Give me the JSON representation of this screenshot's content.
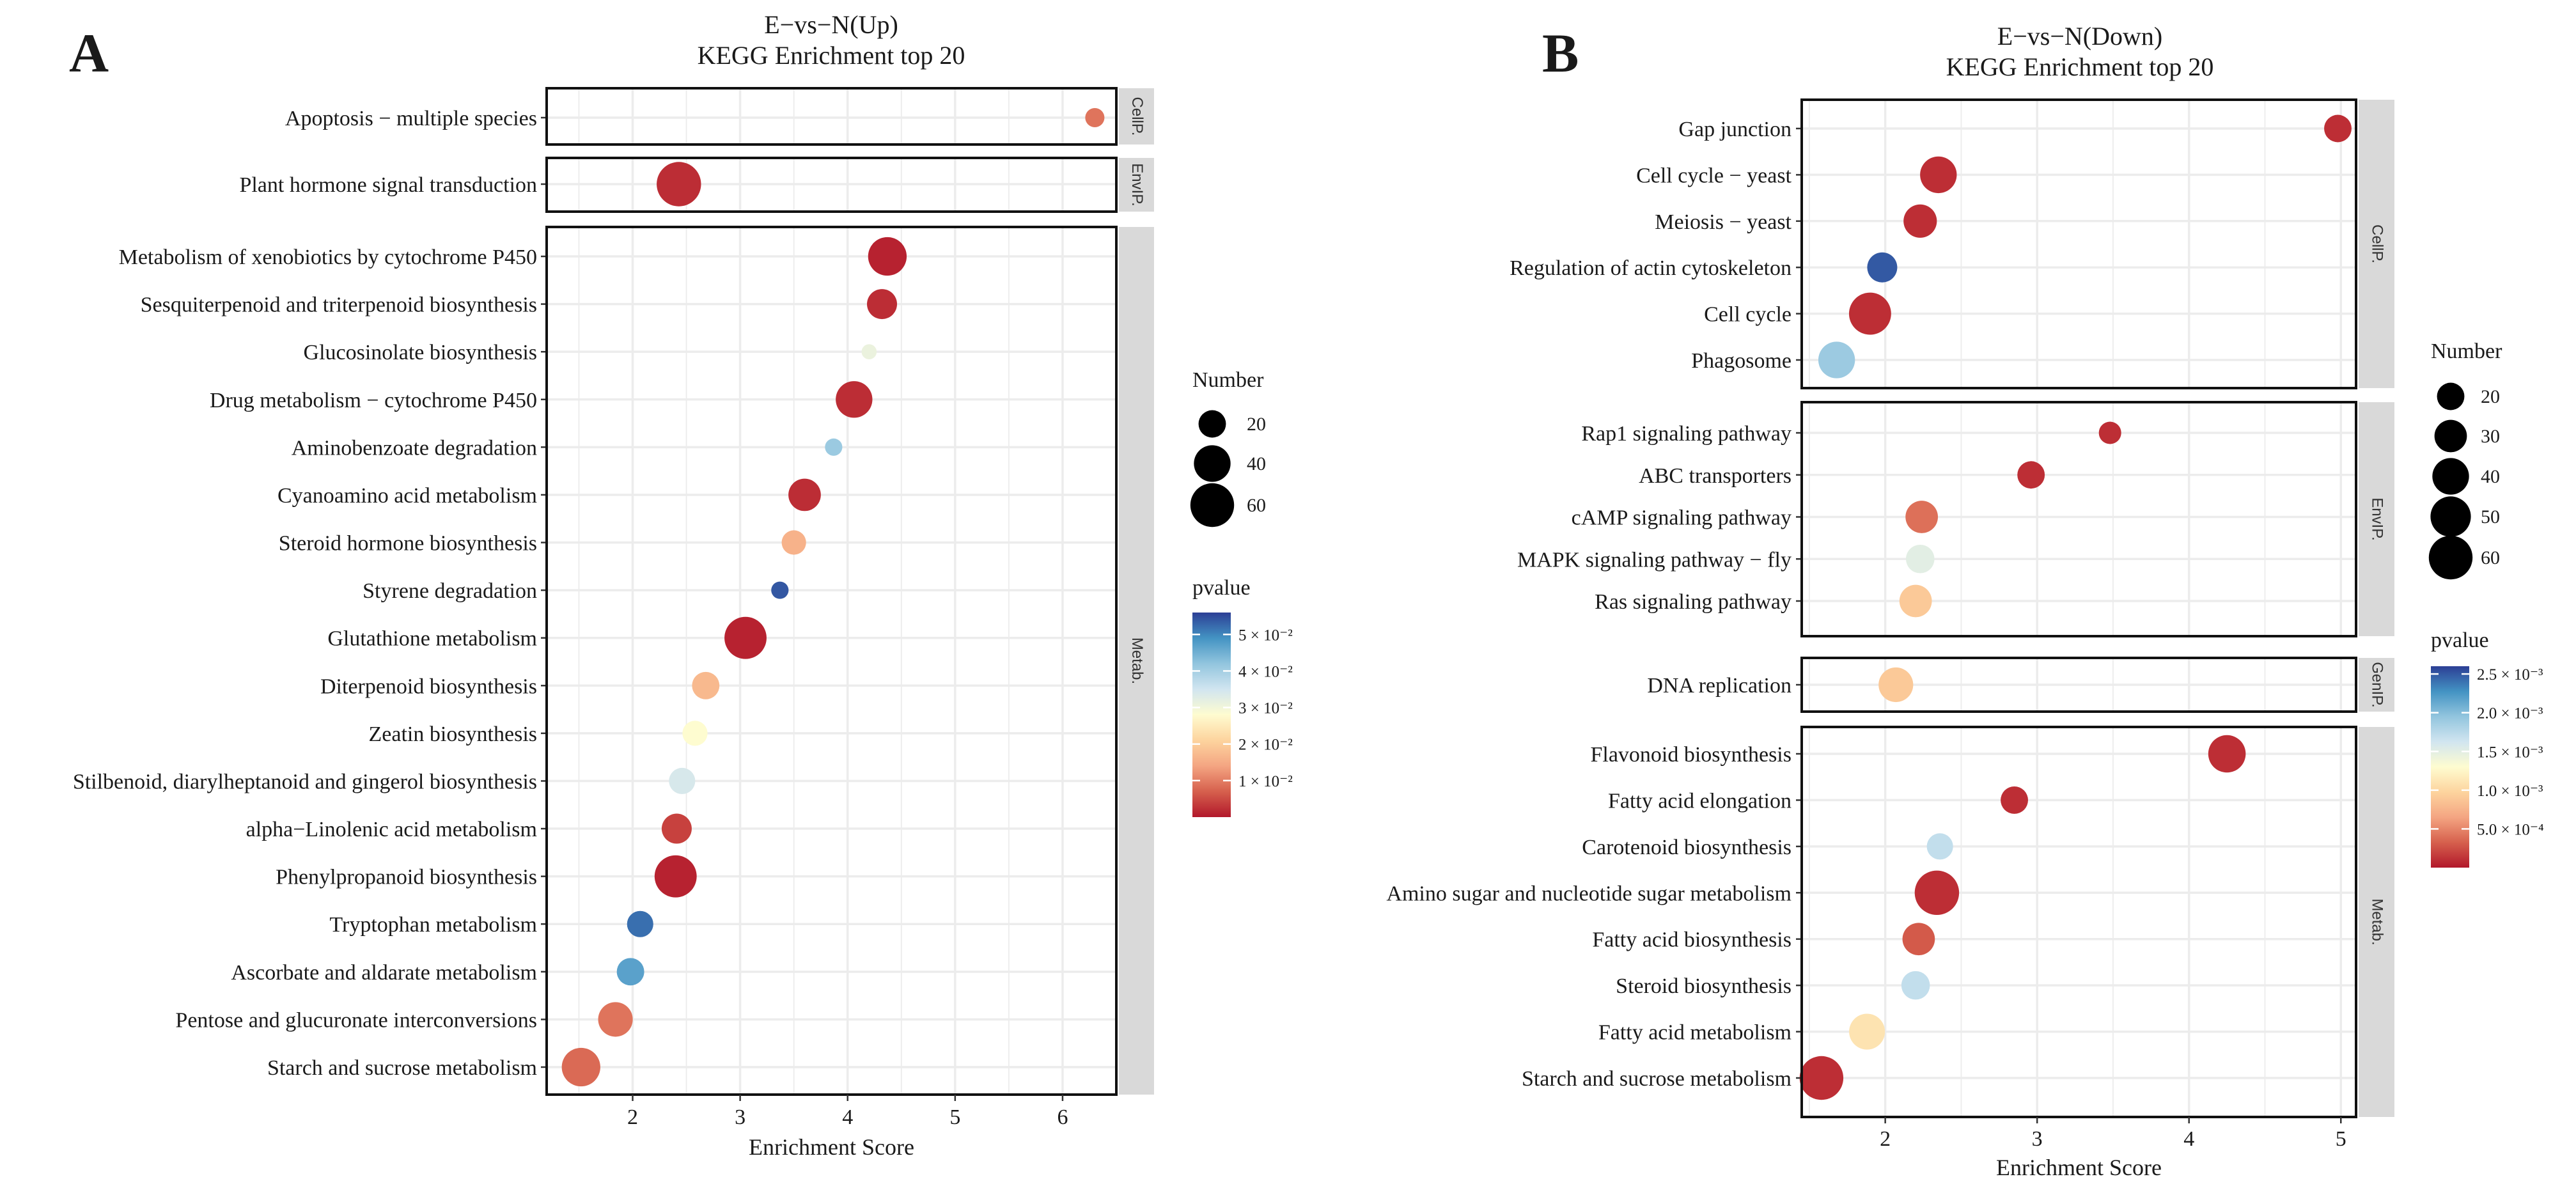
{
  "chart_data": [
    {
      "panel": "A",
      "type": "scatter",
      "title": "E−vs−N(Up)",
      "subtitle": "KEGG Enrichment top 20",
      "xlabel": "Enrichment Score",
      "xlim": [
        1.2,
        6.5
      ],
      "xticks": [
        2,
        3,
        4,
        5,
        6
      ],
      "size_legend": {
        "title": "Number",
        "values": [
          20,
          40,
          60
        ]
      },
      "color_legend": {
        "title": "pvalue",
        "min": 0.0,
        "max": 0.056,
        "ticks": [
          {
            "value": 0.05,
            "label": "5 × 10⁻²"
          },
          {
            "value": 0.04,
            "label": "4 × 10⁻²"
          },
          {
            "value": 0.03,
            "label": "3 × 10⁻²"
          },
          {
            "value": 0.02,
            "label": "2 × 10⁻²"
          },
          {
            "value": 0.01,
            "label": "1 × 10⁻²"
          }
        ]
      },
      "facets": [
        {
          "label": "CellP.",
          "rows": [
            {
              "term": "Apoptosis − multiple species",
              "x": 6.3,
              "number": 8,
              "pvalue": 0.009
            }
          ]
        },
        {
          "label": "EnvIP.",
          "rows": [
            {
              "term": "Plant hormone signal transduction",
              "x": 2.43,
              "number": 62,
              "pvalue": 0.002
            }
          ]
        },
        {
          "label": "Metab.",
          "rows": [
            {
              "term": "Metabolism of xenobiotics by cytochrome P450",
              "x": 4.37,
              "number": 45,
              "pvalue": 0.001
            },
            {
              "term": "Sesquiterpenoid and triterpenoid biosynthesis",
              "x": 4.32,
              "number": 25,
              "pvalue": 0.002
            },
            {
              "term": "Glucosinolate biosynthesis",
              "x": 4.2,
              "number": 4,
              "pvalue": 0.031
            },
            {
              "term": "Drug metabolism − cytochrome P450",
              "x": 4.06,
              "number": 40,
              "pvalue": 0.002
            },
            {
              "term": "Aminobenzoate degradation",
              "x": 3.87,
              "number": 6,
              "pvalue": 0.041
            },
            {
              "term": "Cyanoamino acid metabolism",
              "x": 3.6,
              "number": 30,
              "pvalue": 0.002
            },
            {
              "term": "Steroid hormone biosynthesis",
              "x": 3.5,
              "number": 15,
              "pvalue": 0.016
            },
            {
              "term": "Styrene degradation",
              "x": 3.37,
              "number": 6,
              "pvalue": 0.054
            },
            {
              "term": "Glutathione metabolism",
              "x": 3.05,
              "number": 55,
              "pvalue": 0.001
            },
            {
              "term": "Diterpenoid biosynthesis",
              "x": 2.68,
              "number": 20,
              "pvalue": 0.017
            },
            {
              "term": "Zeatin biosynthesis",
              "x": 2.58,
              "number": 16,
              "pvalue": 0.028
            },
            {
              "term": "Stilbenoid, diarylheptanoid and gingerol biosynthesis",
              "x": 2.46,
              "number": 18,
              "pvalue": 0.034
            },
            {
              "term": "alpha−Linolenic acid metabolism",
              "x": 2.41,
              "number": 25,
              "pvalue": 0.004
            },
            {
              "term": "Phenylpropanoid biosynthesis",
              "x": 2.4,
              "number": 55,
              "pvalue": 0.001
            },
            {
              "term": "Tryptophan metabolism",
              "x": 2.07,
              "number": 18,
              "pvalue": 0.052
            },
            {
              "term": "Ascorbate and aldarate metabolism",
              "x": 1.98,
              "number": 20,
              "pvalue": 0.047
            },
            {
              "term": "Pentose and glucuronate interconversions",
              "x": 1.84,
              "number": 35,
              "pvalue": 0.009
            },
            {
              "term": "Starch and sucrose metabolism",
              "x": 1.52,
              "number": 45,
              "pvalue": 0.008
            }
          ]
        }
      ]
    },
    {
      "panel": "B",
      "type": "scatter",
      "title": "E−vs−N(Down)",
      "subtitle": "KEGG Enrichment top 20",
      "xlabel": "Enrichment Score",
      "xlim": [
        1.45,
        5.1
      ],
      "xticks": [
        2,
        3,
        4,
        5
      ],
      "size_legend": {
        "title": "Number",
        "values": [
          20,
          30,
          40,
          50,
          60
        ]
      },
      "color_legend": {
        "title": "pvalue",
        "min": 0.0,
        "max": 0.0026,
        "ticks": [
          {
            "value": 0.0025,
            "label": "2.5 × 10⁻³"
          },
          {
            "value": 0.002,
            "label": "2.0 × 10⁻³"
          },
          {
            "value": 0.0015,
            "label": "1.5 × 10⁻³"
          },
          {
            "value": 0.001,
            "label": "1.0 × 10⁻³"
          },
          {
            "value": 0.0005,
            "label": "5.0 × 10⁻⁴"
          }
        ]
      },
      "facets": [
        {
          "label": "CellP.",
          "rows": [
            {
              "term": "Gap junction",
              "x": 4.98,
              "number": 20,
              "pvalue": 0.0001
            },
            {
              "term": "Cell cycle − yeast",
              "x": 2.35,
              "number": 40,
              "pvalue": 0.0001
            },
            {
              "term": "Meiosis − yeast",
              "x": 2.23,
              "number": 32,
              "pvalue": 0.0001
            },
            {
              "term": "Regulation of actin cytoskeleton",
              "x": 1.98,
              "number": 25,
              "pvalue": 0.0025
            },
            {
              "term": "Cell cycle",
              "x": 1.9,
              "number": 55,
              "pvalue": 0.0001
            },
            {
              "term": "Phagosome",
              "x": 1.68,
              "number": 40,
              "pvalue": 0.0019
            }
          ]
        },
        {
          "label": "EnvIP.",
          "rows": [
            {
              "term": "Rap1 signaling pathway",
              "x": 3.48,
              "number": 12,
              "pvalue": 0.0001
            },
            {
              "term": "ABC transporters",
              "x": 2.96,
              "number": 20,
              "pvalue": 0.0001
            },
            {
              "term": "cAMP signaling pathway",
              "x": 2.24,
              "number": 30,
              "pvalue": 0.0004
            },
            {
              "term": "MAPK signaling pathway − fly",
              "x": 2.23,
              "number": 22,
              "pvalue": 0.0015
            },
            {
              "term": "Ras signaling pathway",
              "x": 2.2,
              "number": 30,
              "pvalue": 0.0009
            }
          ]
        },
        {
          "label": "GenIP.",
          "rows": [
            {
              "term": "DNA replication",
              "x": 2.07,
              "number": 35,
              "pvalue": 0.0009
            }
          ]
        },
        {
          "label": "Metab.",
          "rows": [
            {
              "term": "Flavonoid biosynthesis",
              "x": 4.25,
              "number": 42,
              "pvalue": 0.0001
            },
            {
              "term": "Fatty acid elongation",
              "x": 2.85,
              "number": 20,
              "pvalue": 0.0001
            },
            {
              "term": "Carotenoid biosynthesis",
              "x": 2.36,
              "number": 18,
              "pvalue": 0.0017
            },
            {
              "term": "Amino sugar and nucleotide sugar metabolism",
              "x": 2.34,
              "number": 62,
              "pvalue": 0.0001
            },
            {
              "term": "Fatty acid biosynthesis",
              "x": 2.22,
              "number": 30,
              "pvalue": 0.0003
            },
            {
              "term": "Steroid biosynthesis",
              "x": 2.2,
              "number": 22,
              "pvalue": 0.0017
            },
            {
              "term": "Fatty acid metabolism",
              "x": 1.88,
              "number": 38,
              "pvalue": 0.0011
            },
            {
              "term": "Starch and sucrose metabolism",
              "x": 1.58,
              "number": 60,
              "pvalue": 0.0001
            }
          ]
        }
      ]
    }
  ]
}
